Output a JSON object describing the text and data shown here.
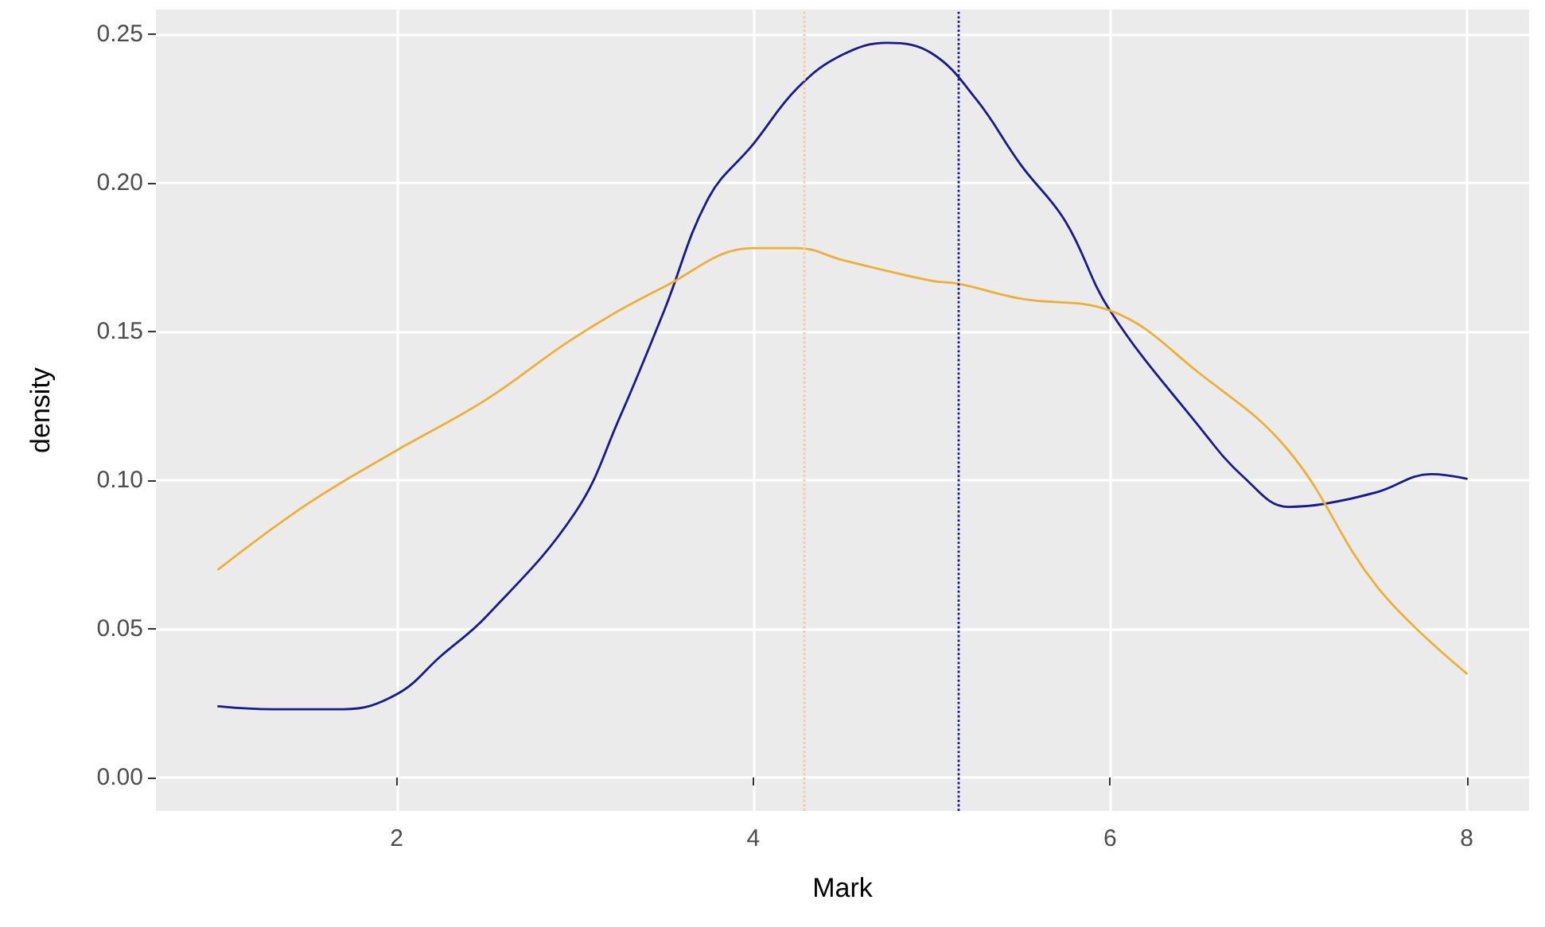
{
  "chart_data": {
    "type": "line",
    "xlabel": "Mark",
    "ylabel": "density",
    "xlim": [
      0.65,
      8.35
    ],
    "xticks": [
      2,
      4,
      6,
      8
    ],
    "ylim": [
      -0.0112,
      0.2582
    ],
    "yticks": [
      {
        "value": 0,
        "label": "0.00"
      },
      0.05,
      {
        "value": 0.1,
        "label": "0.10"
      },
      0.15,
      {
        "value": 0.2,
        "label": "0.20"
      },
      0.25
    ],
    "grid": true,
    "marker": "none",
    "line_style": "solid",
    "series": [
      {
        "color": "#1a1a8c",
        "x": [
          1,
          1.3,
          1.7,
          2,
          2.25,
          2.5,
          3,
          3.25,
          3.5,
          3.75,
          4,
          4.25,
          4.5,
          4.75,
          5,
          5.25,
          5.5,
          5.75,
          6,
          6.5,
          6.75,
          7,
          7.2,
          7.5,
          7.8,
          8
        ],
        "values": [
          0.024,
          0.023,
          0.023,
          0.028,
          0.041,
          0.054,
          0.089,
          0.121,
          0.157,
          0.195,
          0.213,
          0.232,
          0.243,
          0.247,
          0.2435,
          0.228,
          0.206,
          0.187,
          0.157,
          0.118,
          0.101,
          0.091,
          0.092,
          0.096,
          0.102,
          0.1005
        ]
      },
      {
        "color": "#ecb03a",
        "x": [
          1,
          1.5,
          2,
          2.5,
          3,
          3.5,
          4,
          4.25,
          4.5,
          5,
          5.15,
          5.5,
          6,
          6.5,
          7,
          7.5,
          8
        ],
        "values": [
          0.07,
          0.092,
          0.11,
          0.127,
          0.148,
          0.165,
          0.178,
          0.178,
          0.174,
          0.167,
          0.166,
          0.161,
          0.157,
          0.136,
          0.11,
          0.064,
          0.035
        ]
      }
    ],
    "ref_lines": [
      {
        "axis": "x",
        "value": 4.28,
        "color": "#f3c9a0",
        "line_style": "dotted"
      },
      {
        "axis": "x",
        "value": 5.15,
        "color": "#1a1a8c",
        "line_style": "dotted"
      }
    ]
  }
}
